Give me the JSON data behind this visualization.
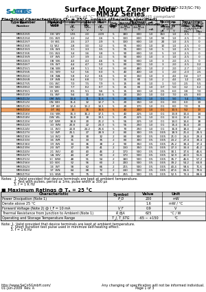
{
  "title": "Surface Mount Zener Diode",
  "subtitle": "MM3Z Series",
  "subtitle2": "A suffix of \"C\" specifies halogen & RoHS compliant",
  "spec_right": "200mW, SOD-323(SC-76)",
  "logo_text": "secos",
  "ec_title": "Electrical Characteristics (Tₐ = 25°C, unless otherwise specified)",
  "table_headers": [
    "Type\nNumber",
    "Marking\nCode",
    "Zener Voltage Range (Note 2)\nVz\nMin  Nom  Max\nV    V    V",
    "@Izt\nmA",
    "Maximum\nZener Impedance (Note 3)\nZzt@Izt    Zzk@Izk\nΩ          Ω       mA",
    "Maximum\nReverse Current\n(Note 2)\nIr @ Vr\nμA    V",
    "Temperature\nCoefficient of\nZener Voltage\n@ Iz = 5 mA\nmV / °C\nMin   Max"
  ],
  "rows": [
    [
      "MM3Z2V0",
      "0H",
      "WY",
      "1.91",
      "2.0",
      "2.09",
      "5",
      "180",
      "600",
      "1.0",
      "150",
      "1.0",
      "-3.5",
      "0"
    ],
    [
      "MM3Z2V4",
      "0G",
      "WX",
      "2.2",
      "2.4",
      "2.6",
      "5",
      "100",
      "600",
      "1.0",
      "50",
      "1.0",
      "-3.5",
      "0"
    ],
    [
      "MM3Z2V7",
      "0I",
      "W1",
      "2.5",
      "2.7",
      "2.9",
      "5",
      "100",
      "600",
      "1.0",
      "20",
      "1.0",
      "-3.5",
      "0"
    ],
    [
      "MM3Z3V0",
      "0J",
      "W2",
      "2.8",
      "3.0",
      "3.2",
      "5",
      "95",
      "600",
      "1.0",
      "10",
      "1.0",
      "-3.5",
      "0"
    ],
    [
      "MM3Z3V3",
      "0S",
      "W3",
      "3.1",
      "3.3",
      "3.5",
      "5",
      "95",
      "600",
      "1.0",
      "5",
      "1.0",
      "-3.5",
      "0"
    ],
    [
      "MM3Z3V6",
      "0G",
      "W4",
      "3.4",
      "3.6",
      "3.8",
      "5",
      "90",
      "600",
      "1.0",
      "5",
      "1.0",
      "-3.5",
      "0"
    ],
    [
      "MM3Z3V9",
      "0T",
      "W5",
      "3.7",
      "3.9",
      "4.1",
      "5",
      "90",
      "600",
      "1.0",
      "3",
      "1.0",
      "-3.5",
      "0"
    ],
    [
      "MM3Z4V3",
      "0B",
      "W6",
      "4.0",
      "4.3",
      "4.6",
      "5",
      "90",
      "600",
      "1.0",
      "3",
      "2.0",
      "-3.5",
      "0"
    ],
    [
      "MM3Z4V7",
      "0S",
      "W7",
      "4.4",
      "4.7",
      "5.0",
      "5",
      "80",
      "500",
      "1.0",
      "3",
      "2.0",
      "-3.5",
      "0.2"
    ],
    [
      "MM3Z5V1",
      "0A",
      "W8",
      "4.8",
      "5.1",
      "5.4",
      "5",
      "60",
      "480",
      "1.0",
      "2",
      "2.0",
      "-2.7",
      "1.2"
    ],
    [
      "MM3Z5V6",
      "0C",
      "W9",
      "5.2",
      "5.6",
      "6.0",
      "5",
      "40",
      "400",
      "1.0",
      "1",
      "2.0",
      "-2.0",
      "2.5"
    ],
    [
      "MM3Z6V2",
      "0E",
      "WA",
      "5.8",
      "6.2",
      "6.6",
      "5",
      "10",
      "150",
      "1.0",
      "3",
      "4.0",
      "0.4",
      "3.7"
    ],
    [
      "MM3Z6V8",
      "0F",
      "WB",
      "6.4",
      "6.8",
      "7.2",
      "5",
      "15",
      "80",
      "1.0",
      "2",
      "4.0",
      "1.2",
      "4.5"
    ],
    [
      "MM3Z7V5",
      "0G",
      "WC",
      "7.0",
      "7.5",
      "7.9",
      "5",
      "15",
      "80",
      "1.0",
      "1",
      "5.0",
      "2.5",
      "5.5"
    ],
    [
      "MM3Z8V2",
      "0H",
      "WD",
      "7.7",
      "8.2",
      "8.7",
      "5",
      "15",
      "80",
      "1.0",
      "0.7",
      "5.0",
      "3.2",
      "6.2"
    ],
    [
      "MM3Z9V1",
      "0I",
      "WE",
      "8.5",
      "9.1",
      "9.6",
      "5",
      "15",
      "100",
      "1.0",
      "0.5",
      "6.0",
      "3.8",
      "7.0"
    ],
    [
      "MM3Z10V",
      "0L",
      "WF",
      "9.4",
      "10",
      "10.6",
      "5",
      "20",
      "150",
      "1.0",
      "0.2",
      "7.0",
      "4.5",
      "8.0"
    ],
    [
      "MM3Z11V",
      "0M",
      "WG",
      "10.4",
      "11",
      "11.6",
      "5",
      "20",
      "150",
      "1.0",
      "0.1",
      "9.0",
      "5.4",
      "9.5"
    ],
    [
      "MM3Z12V",
      "0N",
      "WH",
      "11.4",
      "12",
      "12.7",
      "5",
      "20",
      "150",
      "1.0",
      "0.1",
      "8.0",
      "6.0",
      "10"
    ],
    [
      "MM3Z13V",
      "0P",
      "WI",
      "12.4",
      "13.2",
      "14.1",
      "5",
      "20",
      "170",
      "1.0",
      "0.1",
      "8.0",
      "7.0",
      "11"
    ],
    [
      "MM3Z15V",
      "0T",
      "WJ",
      "14",
      "15",
      "15.6",
      "5",
      "40",
      "200",
      "1.0",
      "0.1",
      "10.5",
      "9.2",
      "13"
    ],
    [
      "MM3Z16V",
      "0U",
      "WK",
      "15.3",
      "16.2",
      "17.1",
      "5",
      "40",
      "225",
      "1.0",
      "0.1",
      "13.8",
      "10.4",
      "14"
    ],
    [
      "MM3Z18V",
      "0W",
      "WL",
      "16.8",
      "18",
      "19.1",
      "5",
      "45",
      "225",
      "1.0",
      "0.1",
      "12.6",
      "12.4",
      "16"
    ],
    [
      "MM3Z20V",
      "0Z",
      "WM",
      "18.8",
      "20",
      "21.2",
      "5",
      "55",
      "225",
      "1.0",
      "0.1",
      "14.0",
      "14.4",
      "18"
    ],
    [
      "MM3Z22V",
      "10",
      "WN",
      "20.8",
      "22",
      "23.3",
      "5",
      "55",
      "250",
      "1.0",
      "0.1",
      "15.4",
      "16.4",
      "20"
    ],
    [
      "MM3Z24V",
      "11",
      "WO",
      "22.8",
      "24.2",
      "25.6",
      "5",
      "70",
      "250",
      "1.0",
      "0.1",
      "16.8",
      "18.4",
      "22"
    ],
    [
      "MM3Z27V",
      "12",
      "WP",
      "25.1",
      "27",
      "28.9",
      "2",
      "80",
      "300",
      "0.5",
      "0.05",
      "18.9",
      "21.4",
      "25.5"
    ],
    [
      "MM3Z30V",
      "14",
      "WQ",
      "28",
      "30",
      "32",
      "2",
      "80",
      "300",
      "0.5",
      "0.05",
      "21.0",
      "24.4",
      "29.4"
    ],
    [
      "MM3Z33V",
      "16",
      "WR",
      "31",
      "33",
      "35",
      "2",
      "80",
      "300",
      "0.5",
      "0.05",
      "23.2",
      "27.4",
      "30.4"
    ],
    [
      "MM3Z36V",
      "19",
      "WS",
      "34",
      "36",
      "38",
      "2",
      "90",
      "350",
      "0.5",
      "0.05",
      "25.2",
      "30.4",
      "37.4"
    ],
    [
      "MM3Z39V",
      "20",
      "WT",
      "37",
      "39",
      "41",
      "2",
      "130",
      "350",
      "0.5",
      "0.05",
      "27.3",
      "33.4",
      "41.2"
    ],
    [
      "MM3Z43V",
      "21",
      "WU",
      "40",
      "43",
      "46",
      "2",
      "170",
      "500",
      "0.5",
      "0.05",
      "30.1",
      "37.6",
      "46.6"
    ],
    [
      "MM3Z47V",
      "1A",
      "WV",
      "44",
      "47",
      "50",
      "2",
      "170",
      "500",
      "0.5",
      "0.05",
      "32.9",
      "42.0",
      "51.6"
    ],
    [
      "MM3Z51V",
      "1C",
      "WW",
      "48",
      "51",
      "54",
      "2",
      "180",
      "500",
      "0.5",
      "0.05",
      "35.7",
      "46.6",
      "57.2"
    ],
    [
      "MM3Z56V",
      "1D",
      "WX",
      "52",
      "56",
      "60",
      "2",
      "200",
      "500",
      "0.5",
      "0.05",
      "39.2",
      "54.2",
      "63.8"
    ],
    [
      "MM3Z62V",
      "1E",
      "WY",
      "58",
      "62",
      "66",
      "2",
      "215",
      "500",
      "0.5",
      "0.05",
      "43.4",
      "58.6",
      "71.6"
    ],
    [
      "MM3Z68V",
      "1F",
      "WN",
      "64",
      "68",
      "72",
      "2",
      "240",
      "500",
      "0.5",
      "0.05",
      "47.6",
      "65.6",
      "79.6"
    ],
    [
      "MM3Z75V",
      "1G",
      "WW",
      "70",
      "75",
      "79",
      "2",
      "255",
      "500",
      "0.5",
      "0.05",
      "52.5",
      "73.4",
      "88.6"
    ]
  ],
  "notes_ec": [
    "Notes:  1. Valid provided that device terminals are kept at ambient temperature.",
    "            2. Test with pulses, period ≤ 1ms, pulse width ≤ 300 μs",
    "            3. f = 1 K Hz"
  ],
  "max_ratings_title": "■ Maximum Ratings @ Tₐ = 25 °C",
  "max_ratings_headers": [
    "Characteristic",
    "Symbol",
    "Value",
    "Unit"
  ],
  "max_ratings_rows": [
    [
      "Power Dissipation (Note 1)",
      "P_D",
      "200",
      "mW"
    ],
    [
      "Derate above 25 °C",
      "",
      "1.6",
      "mW / °C"
    ],
    [
      "Forward Voltage (Note 2) @ I_F = 10 mA",
      "V_F",
      "0.9",
      "V"
    ],
    [
      "Thermal Resistance from Junction to Ambient (Note 1)",
      "R_θJA",
      "625",
      "°C / W"
    ],
    [
      "Operating and Storage Temperature Range",
      "T_J, T_STG",
      "-65 ~ +150",
      "°C"
    ]
  ],
  "footer_notes": [
    "Note: 1. Valid provided that device terminals are kept at ambient temperature.",
    "         2. Short duration test pulse used in minimize self-heating effect.",
    "         3. f = 1 K Hz"
  ],
  "url": "http://www.SeCoSGmbH.com/",
  "footer_right": "Any changing of specification will not be informed individual.",
  "page_info": "01-Jun-2009  Rev. A                                                                                                  Page 1 of 3",
  "bg_color": "#ffffff",
  "header_bg": "#d0d0d0",
  "row_alt_bg": "#e8e8e8",
  "highlight_row": 17,
  "highlight_color_blue": "#6ba3d6",
  "highlight_color_orange": "#f0a060"
}
